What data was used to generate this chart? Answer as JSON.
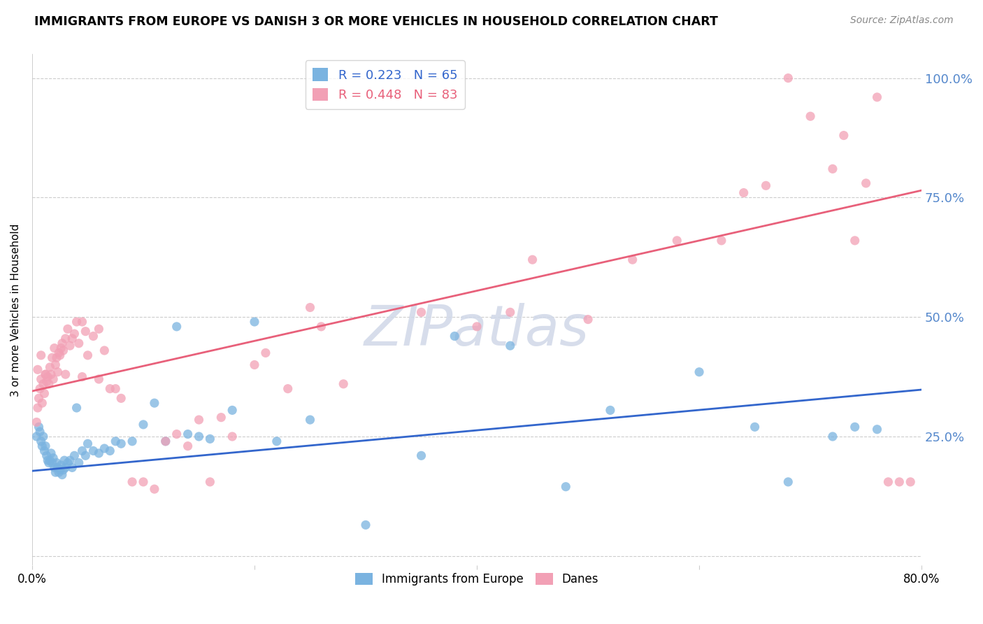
{
  "title": "IMMIGRANTS FROM EUROPE VS DANISH 3 OR MORE VEHICLES IN HOUSEHOLD CORRELATION CHART",
  "source": "Source: ZipAtlas.com",
  "ylabel": "3 or more Vehicles in Household",
  "yticks": [
    0.0,
    0.25,
    0.5,
    0.75,
    1.0
  ],
  "ytick_labels": [
    "",
    "25.0%",
    "50.0%",
    "75.0%",
    "100.0%"
  ],
  "xlim": [
    0.0,
    0.8
  ],
  "ylim": [
    -0.02,
    1.05
  ],
  "blue_R": 0.223,
  "blue_N": 65,
  "pink_R": 0.448,
  "pink_N": 83,
  "blue_color": "#7ab3e0",
  "pink_color": "#f2a0b5",
  "blue_line_color": "#3366cc",
  "pink_line_color": "#e8607a",
  "legend_label_blue": "Immigrants from Europe",
  "legend_label_pink": "Danes",
  "watermark": "ZIPatlas",
  "blue_line_x0": 0.0,
  "blue_line_y0": 0.178,
  "blue_line_x1": 0.8,
  "blue_line_y1": 0.348,
  "pink_line_x0": 0.0,
  "pink_line_y0": 0.345,
  "pink_line_x1": 0.8,
  "pink_line_y1": 0.765,
  "blue_x": [
    0.004,
    0.006,
    0.007,
    0.008,
    0.009,
    0.01,
    0.011,
    0.012,
    0.013,
    0.014,
    0.015,
    0.016,
    0.017,
    0.018,
    0.019,
    0.02,
    0.021,
    0.022,
    0.023,
    0.024,
    0.025,
    0.026,
    0.027,
    0.028,
    0.029,
    0.03,
    0.032,
    0.034,
    0.036,
    0.038,
    0.04,
    0.042,
    0.045,
    0.048,
    0.05,
    0.055,
    0.06,
    0.065,
    0.07,
    0.075,
    0.08,
    0.09,
    0.1,
    0.11,
    0.12,
    0.13,
    0.14,
    0.15,
    0.16,
    0.18,
    0.2,
    0.22,
    0.25,
    0.3,
    0.35,
    0.38,
    0.43,
    0.48,
    0.52,
    0.6,
    0.65,
    0.68,
    0.72,
    0.74,
    0.76
  ],
  "blue_y": [
    0.25,
    0.27,
    0.26,
    0.24,
    0.23,
    0.25,
    0.22,
    0.23,
    0.21,
    0.2,
    0.195,
    0.2,
    0.215,
    0.195,
    0.205,
    0.185,
    0.175,
    0.195,
    0.185,
    0.175,
    0.18,
    0.19,
    0.17,
    0.18,
    0.2,
    0.185,
    0.195,
    0.2,
    0.185,
    0.21,
    0.31,
    0.195,
    0.22,
    0.21,
    0.235,
    0.22,
    0.215,
    0.225,
    0.22,
    0.24,
    0.235,
    0.24,
    0.275,
    0.32,
    0.24,
    0.48,
    0.255,
    0.25,
    0.245,
    0.305,
    0.49,
    0.24,
    0.285,
    0.065,
    0.21,
    0.46,
    0.44,
    0.145,
    0.305,
    0.385,
    0.27,
    0.155,
    0.25,
    0.27,
    0.265
  ],
  "pink_x": [
    0.004,
    0.005,
    0.006,
    0.007,
    0.008,
    0.009,
    0.01,
    0.011,
    0.012,
    0.013,
    0.014,
    0.015,
    0.016,
    0.017,
    0.018,
    0.019,
    0.02,
    0.021,
    0.022,
    0.023,
    0.024,
    0.025,
    0.026,
    0.027,
    0.028,
    0.03,
    0.032,
    0.034,
    0.036,
    0.038,
    0.04,
    0.042,
    0.045,
    0.048,
    0.05,
    0.055,
    0.06,
    0.065,
    0.07,
    0.075,
    0.08,
    0.09,
    0.1,
    0.11,
    0.12,
    0.13,
    0.14,
    0.15,
    0.16,
    0.17,
    0.18,
    0.2,
    0.21,
    0.23,
    0.25,
    0.26,
    0.28,
    0.35,
    0.4,
    0.43,
    0.45,
    0.5,
    0.54,
    0.58,
    0.62,
    0.64,
    0.66,
    0.68,
    0.7,
    0.72,
    0.73,
    0.74,
    0.75,
    0.76,
    0.77,
    0.78,
    0.79,
    0.005,
    0.008,
    0.012,
    0.03,
    0.045,
    0.06
  ],
  "pink_y": [
    0.28,
    0.31,
    0.33,
    0.35,
    0.37,
    0.32,
    0.36,
    0.34,
    0.38,
    0.365,
    0.375,
    0.36,
    0.395,
    0.38,
    0.415,
    0.37,
    0.435,
    0.4,
    0.415,
    0.385,
    0.425,
    0.42,
    0.435,
    0.445,
    0.43,
    0.455,
    0.475,
    0.44,
    0.455,
    0.465,
    0.49,
    0.445,
    0.49,
    0.47,
    0.42,
    0.46,
    0.475,
    0.43,
    0.35,
    0.35,
    0.33,
    0.155,
    0.155,
    0.14,
    0.24,
    0.255,
    0.23,
    0.285,
    0.155,
    0.29,
    0.25,
    0.4,
    0.425,
    0.35,
    0.52,
    0.48,
    0.36,
    0.51,
    0.48,
    0.51,
    0.62,
    0.495,
    0.62,
    0.66,
    0.66,
    0.76,
    0.775,
    1.0,
    0.92,
    0.81,
    0.88,
    0.66,
    0.78,
    0.96,
    0.155,
    0.155,
    0.155,
    0.39,
    0.42,
    0.38,
    0.38,
    0.375,
    0.37
  ]
}
